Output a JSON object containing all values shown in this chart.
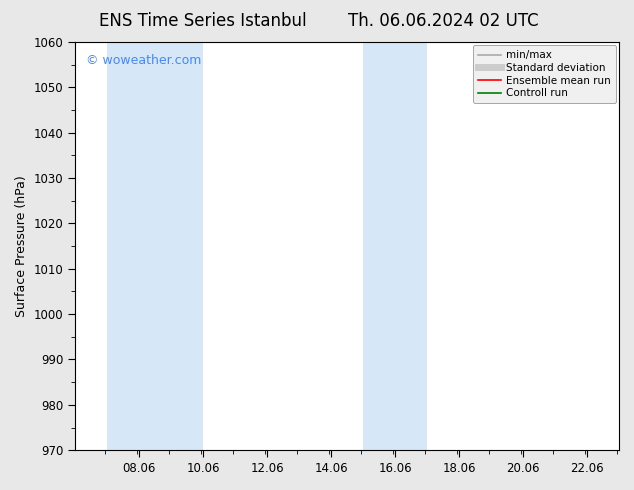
{
  "title_left": "ENS Time Series Istanbul",
  "title_right": "Th. 06.06.2024 02 UTC",
  "ylabel": "Surface Pressure (hPa)",
  "ylim": [
    970,
    1060
  ],
  "yticks": [
    970,
    980,
    990,
    1000,
    1010,
    1020,
    1030,
    1040,
    1050,
    1060
  ],
  "xlim": [
    6.06,
    23.06
  ],
  "xticks": [
    8.06,
    10.06,
    12.06,
    14.06,
    16.06,
    18.06,
    20.06,
    22.06
  ],
  "xticklabels": [
    "08.06",
    "10.06",
    "12.06",
    "14.06",
    "16.06",
    "18.06",
    "20.06",
    "22.06"
  ],
  "watermark": "© woweather.com",
  "watermark_color": "#4488ff",
  "background_color": "#e8e8e8",
  "plot_bg_color": "#ffffff",
  "shaded_regions": [
    {
      "xmin": 7.06,
      "xmax": 10.06,
      "color": "#d6e8f8"
    },
    {
      "xmin": 15.06,
      "xmax": 17.06,
      "color": "#d6e8f8"
    }
  ],
  "legend_entries": [
    {
      "label": "min/max",
      "color": "#aaaaaa",
      "lw": 1.2
    },
    {
      "label": "Standard deviation",
      "color": "#cccccc",
      "lw": 5
    },
    {
      "label": "Ensemble mean run",
      "color": "#ff0000",
      "lw": 1.2
    },
    {
      "label": "Controll run",
      "color": "#008000",
      "lw": 1.2
    }
  ],
  "font_family": "DejaVu Sans",
  "title_fontsize": 12,
  "tick_fontsize": 8.5,
  "label_fontsize": 9,
  "watermark_fontsize": 9
}
